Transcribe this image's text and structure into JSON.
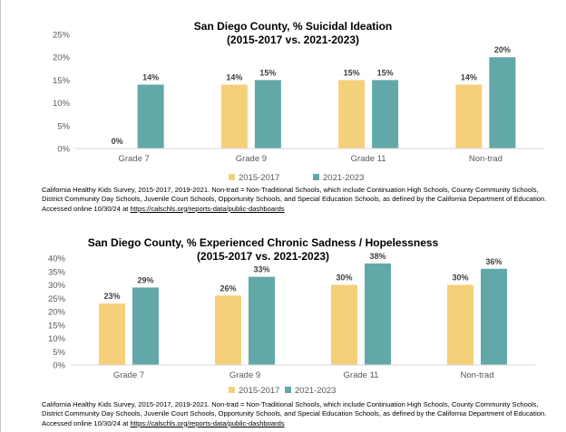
{
  "colors": {
    "series_2015": "#F5D07A",
    "series_2021": "#62A8A8",
    "axis": "#d9d9d9",
    "text": "#595959"
  },
  "chart_data": [
    {
      "type": "bar",
      "title": "San Diego County, % Suicidal Ideation",
      "subtitle": "(2015-2017 vs. 2021-2023)",
      "categories": [
        "Grade 7",
        "Grade 9",
        "Grade 11",
        "Non-trad"
      ],
      "series": [
        {
          "name": "2015-2017",
          "values": [
            0,
            14,
            15,
            14
          ],
          "labels": [
            "0%",
            "14%",
            "15%",
            "14%"
          ]
        },
        {
          "name": "2021-2023",
          "values": [
            14,
            15,
            15,
            20
          ],
          "labels": [
            "14%",
            "15%",
            "15%",
            "20%"
          ]
        }
      ],
      "ylim": [
        0,
        25
      ],
      "yticks": [
        0,
        5,
        10,
        15,
        20,
        25
      ],
      "ytick_labels": [
        "0%",
        "5%",
        "10%",
        "15%",
        "20%",
        "25%"
      ],
      "xlabel": "",
      "ylabel": "",
      "grid": false,
      "legend": "bottom",
      "source": {
        "text": "California Healthy Kids Survey, 2015-2017, 2019-2021. Non-trad = Non-Traditional Schools, which include Continuation High Schools, County Community Schools, District Community Day Schools, Juvenile Court Schools, Opportunity Schools, and Special Education Schools, as defined by the California Department of Education. Accessed online 10/30/24 at ",
        "link": "https://calschls.org/reports-data/public-dashboards"
      }
    },
    {
      "type": "bar",
      "title": "San Diego County, % Experienced Chronic Sadness / Hopelessness",
      "subtitle": "(2015-2017 vs. 2021-2023)",
      "categories": [
        "Grade 7",
        "Grade 9",
        "Grade 11",
        "Non-trad"
      ],
      "series": [
        {
          "name": "2015-2017",
          "values": [
            23,
            26,
            30,
            30
          ],
          "labels": [
            "23%",
            "26%",
            "30%",
            "30%"
          ]
        },
        {
          "name": "2021-2023",
          "values": [
            29,
            33,
            38,
            36
          ],
          "labels": [
            "29%",
            "33%",
            "38%",
            "36%"
          ]
        }
      ],
      "ylim": [
        0,
        40
      ],
      "yticks": [
        0,
        5,
        10,
        15,
        20,
        25,
        30,
        35,
        40
      ],
      "ytick_labels": [
        "0%",
        "5%",
        "10%",
        "15%",
        "20%",
        "25%",
        "30%",
        "35%",
        "40%"
      ],
      "xlabel": "",
      "ylabel": "",
      "grid": false,
      "legend": "bottom",
      "source": {
        "text": "California Healthy Kids Survey, 2015-2017, 2019-2021. Non-trad = Non-Traditional Schools, which include Continuation High Schools, County Community Schools, District Community Day Schools, Juvenile Court Schools, Opportunity Schools, and Special Education Schools, as defined by the California Department of Education. Accessed online 10/30/24 at ",
        "link": "https://calschls.org/reports-data/public-dashboards"
      }
    }
  ]
}
